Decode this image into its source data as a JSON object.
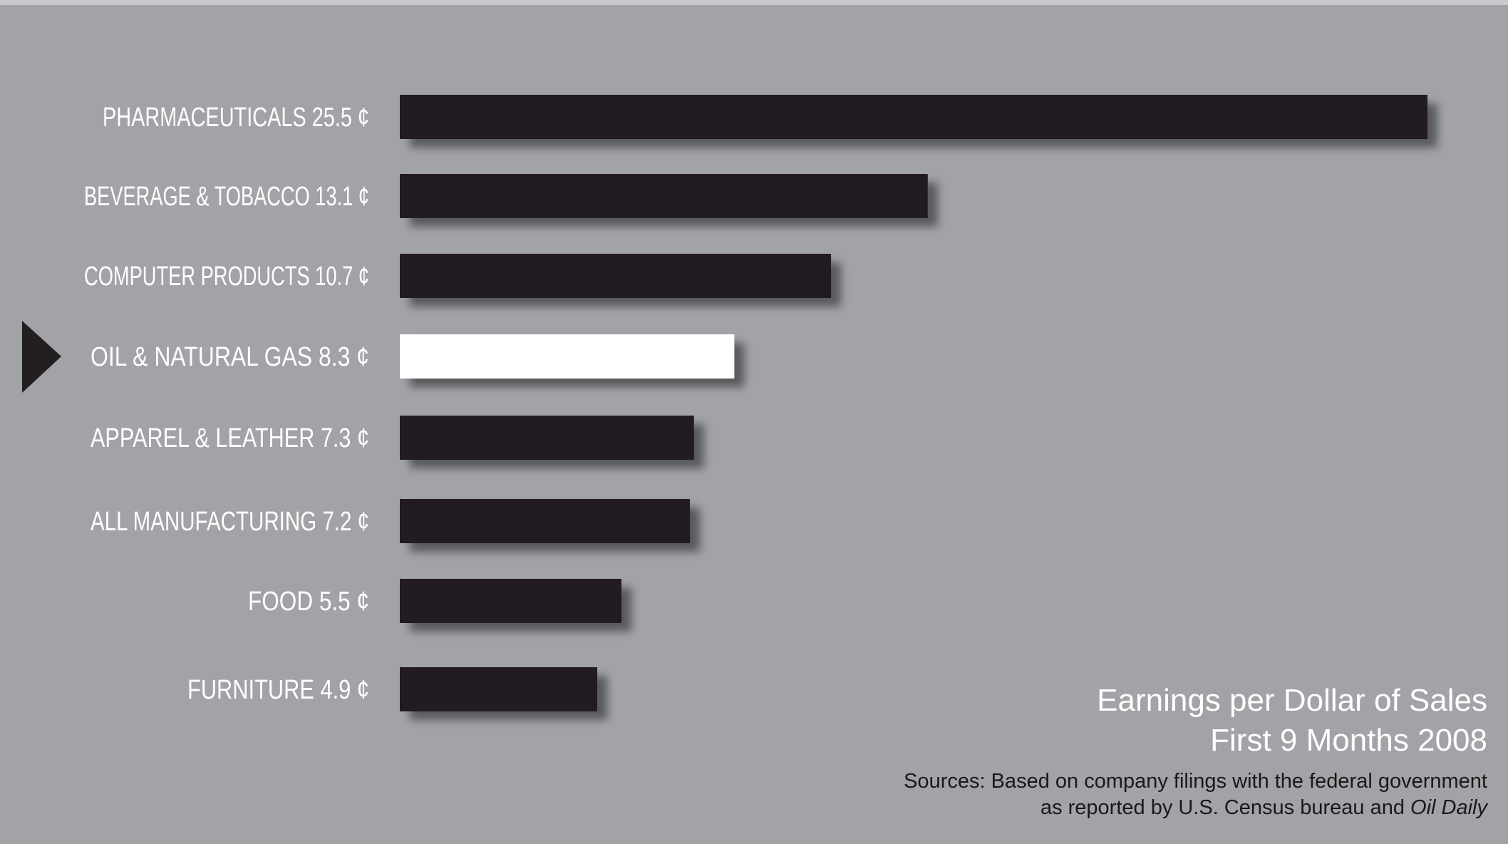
{
  "chart_data": {
    "type": "bar",
    "orientation": "horizontal",
    "categories": [
      "PHARMACEUTICALS 25.5 ¢",
      "BEVERAGE & TOBACCO 13.1 ¢",
      "COMPUTER PRODUCTS 10.7 ¢",
      "OIL & NATURAL GAS 8.3 ¢",
      "APPAREL & LEATHER 7.3 ¢",
      "ALL MANUFACTURING 7.2 ¢",
      "FOOD 5.5 ¢",
      "FURNITURE 4.9 ¢"
    ],
    "values": [
      25.5,
      13.1,
      10.7,
      8.3,
      7.3,
      7.2,
      5.5,
      4.9
    ],
    "highlight_index": 3,
    "title": "Earnings per Dollar of Sales",
    "subtitle": "First 9 Months 2008",
    "xlabel": "",
    "ylabel": "",
    "xlim": [
      0,
      25.5
    ],
    "grid": false,
    "legend": "none"
  },
  "source": {
    "line1": "Sources: Based on company filings with the federal government",
    "line2_prefix": "as reported by U.S. Census bureau and ",
    "line2_italic": "Oil Daily"
  },
  "colors": {
    "background": "#a2a3a7",
    "bar": "#231f20",
    "highlight_bar": "#ffffff",
    "label": "#ffffff",
    "pointer": "#231f20"
  }
}
